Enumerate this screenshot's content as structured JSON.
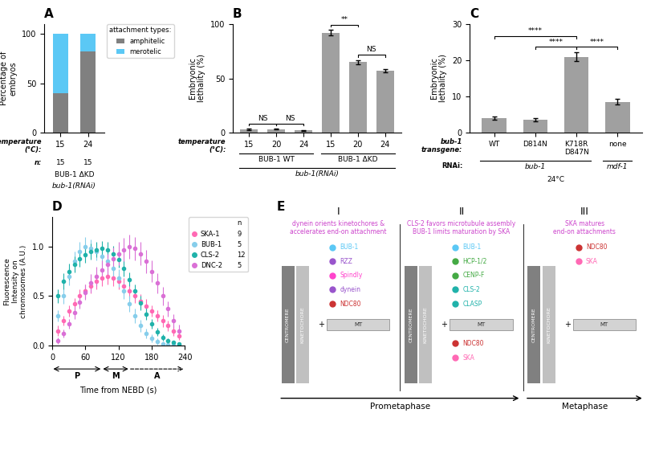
{
  "chart_data": [
    {
      "type": "bar",
      "stacked": true,
      "title": "A",
      "categories": [
        "15",
        "24"
      ],
      "series": [
        {
          "name": "amphitelic",
          "color": "#808080",
          "values": [
            40,
            82
          ]
        },
        {
          "name": "merotelic",
          "color": "#5bc8f5",
          "values": [
            60,
            18
          ]
        }
      ],
      "y_label": "Percentage of\nembryos",
      "ylim": [
        0,
        110
      ],
      "yticks": [
        0,
        50,
        100
      ],
      "legend": "upper left",
      "legend_title": "attachment types:",
      "annotations": {
        "row_labels": [
          "temperature\n(°C):",
          "n:"
        ],
        "n": [
          15,
          15
        ],
        "groups": [
          [
            {
              "text": "BUB-1 ΔKD",
              "from": 0,
              "to": 1
            }
          ],
          [
            {
              "text": "bub-1(RNAi)",
              "from": 0,
              "to": 1
            }
          ]
        ]
      }
    },
    {
      "type": "bar",
      "title": "B",
      "categories": [
        "15",
        "20",
        "24",
        "15",
        "20",
        "24"
      ],
      "values": [
        3,
        3,
        2,
        92,
        65,
        57
      ],
      "errors": [
        0.5,
        0.4,
        0.3,
        2.5,
        2.0,
        1.5
      ],
      "color": "#a0a0a0",
      "y_label": "Embryonic\nlethality (%)",
      "ylim": [
        0,
        100
      ],
      "yticks": [
        0,
        50,
        100
      ],
      "annotations": {
        "row_labels": [
          "temperature\n(°C):"
        ],
        "groups": [
          [
            {
              "text": "BUB-1 WT",
              "from": 0,
              "to": 2
            },
            {
              "text": "BUB-1 ΔKD",
              "from": 3,
              "to": 5
            }
          ],
          [
            {
              "text": "bub-1(RNAi)",
              "from": 0,
              "to": 5
            }
          ]
        ],
        "brackets": [
          {
            "text": "NS",
            "from": 0,
            "to": 1
          },
          {
            "text": "NS",
            "from": 1,
            "to": 2
          },
          {
            "text": "**",
            "from": 3,
            "to": 4
          },
          {
            "text": "NS",
            "from": 4,
            "to": 5
          }
        ]
      }
    },
    {
      "type": "bar",
      "title": "C",
      "categories": [
        "WT",
        "D814N",
        "K718R\nD847N",
        "none"
      ],
      "values": [
        4,
        3.5,
        21,
        8.5
      ],
      "errors": [
        0.5,
        0.4,
        1.2,
        0.8
      ],
      "color": "#a0a0a0",
      "y_label": "Embryonic\nlethality (%)",
      "ylim": [
        0,
        30
      ],
      "yticks": [
        0,
        10,
        20,
        30
      ],
      "annotations": {
        "row_labels": [
          "bub-1\ntransgene:",
          "RNAi:"
        ],
        "groups": [
          [
            {
              "text": "bub-1",
              "from": 0,
              "to": 2
            },
            {
              "text": "mdf-1",
              "from": 3,
              "to": 3
            }
          ]
        ],
        "footer": "24°C",
        "brackets": [
          {
            "text": "****",
            "from": 0,
            "to": 2
          },
          {
            "text": "****",
            "from": 1,
            "to": 2
          },
          {
            "text": "****",
            "from": 2,
            "to": 3
          }
        ]
      }
    },
    {
      "type": "scatter",
      "title": "D",
      "x_label": "Time from NEBD (s)",
      "y_label": "Fluorescence\nIntensity on\nchromosomes (A.U.)",
      "xlim": [
        0,
        240
      ],
      "xticks": [
        0,
        60,
        120,
        180,
        240
      ],
      "ylim": [
        0,
        1.3
      ],
      "yticks": [
        {
          "value": 0,
          "label": "0.0"
        },
        0.5,
        {
          "value": 1.0,
          "label": "1.0"
        }
      ],
      "legend": "upper left",
      "legend_title": "n",
      "series": [
        {
          "name": "SKA-1",
          "n": 9,
          "color": "#ff69b4",
          "x": [
            10,
            20,
            30,
            40,
            50,
            60,
            70,
            80,
            90,
            100,
            110,
            120,
            130,
            140,
            150,
            160,
            170,
            180,
            190,
            200,
            210,
            220,
            230
          ],
          "values": [
            0.15,
            0.25,
            0.35,
            0.42,
            0.5,
            0.55,
            0.6,
            0.65,
            0.68,
            0.7,
            0.68,
            0.65,
            0.6,
            0.55,
            0.5,
            0.45,
            0.4,
            0.35,
            0.3,
            0.25,
            0.2,
            0.15,
            0.1
          ],
          "errors": [
            0.05,
            0.05,
            0.06,
            0.06,
            0.07,
            0.07,
            0.07,
            0.08,
            0.08,
            0.08,
            0.08,
            0.08,
            0.08,
            0.07,
            0.07,
            0.07,
            0.07,
            0.06,
            0.06,
            0.06,
            0.05,
            0.05,
            0.04
          ]
        },
        {
          "name": "BUB-1",
          "n": 5,
          "color": "#87ceeb",
          "x": [
            10,
            20,
            30,
            40,
            50,
            60,
            70,
            80,
            90,
            100,
            110,
            120,
            130,
            140,
            150,
            160,
            170,
            180,
            190,
            200,
            210,
            220,
            230
          ],
          "values": [
            0.3,
            0.5,
            0.7,
            0.85,
            0.95,
            1.0,
            0.98,
            0.95,
            0.9,
            0.85,
            0.78,
            0.68,
            0.55,
            0.42,
            0.3,
            0.2,
            0.12,
            0.07,
            0.04,
            0.02,
            0.01,
            0.01,
            0.01
          ],
          "errors": [
            0.06,
            0.08,
            0.09,
            0.1,
            0.1,
            0.1,
            0.09,
            0.09,
            0.09,
            0.09,
            0.09,
            0.09,
            0.08,
            0.08,
            0.07,
            0.06,
            0.05,
            0.04,
            0.03,
            0.02,
            0.01,
            0.01,
            0.01
          ]
        },
        {
          "name": "CLS-2",
          "n": 12,
          "color": "#20b2aa",
          "x": [
            10,
            20,
            30,
            40,
            50,
            60,
            70,
            80,
            90,
            100,
            110,
            120,
            130,
            140,
            150,
            160,
            170,
            180,
            190,
            200,
            210,
            220,
            230
          ],
          "values": [
            0.5,
            0.65,
            0.75,
            0.82,
            0.88,
            0.92,
            0.95,
            0.97,
            0.98,
            0.97,
            0.93,
            0.87,
            0.78,
            0.67,
            0.55,
            0.43,
            0.32,
            0.22,
            0.14,
            0.08,
            0.05,
            0.03,
            0.02
          ],
          "errors": [
            0.07,
            0.08,
            0.08,
            0.08,
            0.08,
            0.08,
            0.08,
            0.08,
            0.08,
            0.08,
            0.08,
            0.08,
            0.08,
            0.07,
            0.07,
            0.07,
            0.06,
            0.05,
            0.04,
            0.03,
            0.02,
            0.02,
            0.01
          ]
        },
        {
          "name": "DNC-2",
          "n": 5,
          "color": "#da70d6",
          "x": [
            10,
            20,
            30,
            40,
            50,
            60,
            70,
            80,
            90,
            100,
            110,
            120,
            130,
            140,
            150,
            160,
            170,
            180,
            190,
            200,
            210,
            220,
            230
          ],
          "values": [
            0.05,
            0.12,
            0.22,
            0.33,
            0.44,
            0.54,
            0.63,
            0.7,
            0.76,
            0.82,
            0.88,
            0.93,
            0.97,
            1.0,
            0.98,
            0.93,
            0.85,
            0.75,
            0.63,
            0.5,
            0.37,
            0.25,
            0.15
          ],
          "errors": [
            0.03,
            0.04,
            0.05,
            0.06,
            0.07,
            0.08,
            0.09,
            0.1,
            0.1,
            0.11,
            0.11,
            0.12,
            0.12,
            0.12,
            0.12,
            0.12,
            0.12,
            0.11,
            0.1,
            0.09,
            0.08,
            0.07,
            0.06
          ]
        }
      ],
      "annotations": [
        {
          "text": "P",
          "from": 2,
          "to": 88
        },
        {
          "text": "M",
          "from": 92,
          "to": 138
        },
        {
          "text": "A",
          "from": 142,
          "to": 238,
          "line_style": "dashed"
        }
      ]
    },
    {
      "type": "diagram",
      "title": "E",
      "annotations": {
        "parts": [
          "CENTROMERE",
          "KINETOCHORE",
          "+",
          "MT"
        ],
        "sections": [
          {
            "label": "I",
            "text": "dynein orients kinetochores &\naccelerates end-on attachment",
            "color": "#cc44cc",
            "items": [
              {
                "text": "BUB-1",
                "color": "#5bc8f5"
              },
              {
                "text": "RZZ",
                "color": "#9955cc"
              },
              {
                "text": "Spindly",
                "color": "#ff44cc"
              },
              {
                "text": "dynein",
                "color": "#9955cc"
              },
              {
                "text": "NDC80",
                "color": "#cc3333"
              }
            ]
          },
          {
            "label": "II",
            "text": "CLS-2 favors microtubule assembly\nBUB-1 limits maturation by SKA",
            "color": "#cc44cc",
            "items": [
              {
                "text": "BUB-1",
                "color": "#5bc8f5"
              },
              {
                "text": "HCP-1/2",
                "color": "#44aa44"
              },
              {
                "text": "CENP-F",
                "color": "#44aa44"
              },
              {
                "text": "CLS-2",
                "color": "#20b2aa"
              },
              {
                "text": "CLASP",
                "color": "#20b2aa"
              },
              {
                "text": "NDC80",
                "color": "#cc3333"
              },
              {
                "text": "SKA",
                "color": "#ff69b4"
              }
            ]
          },
          {
            "label": "III",
            "text": "SKA matures\nend-on attachments",
            "color": "#cc44cc",
            "items": [
              {
                "text": "NDC80",
                "color": "#cc3333"
              },
              {
                "text": "SKA",
                "color": "#ff69b4"
              }
            ]
          }
        ],
        "phases": [
          {
            "text": "Prometaphase",
            "from": 0,
            "to": 2
          },
          {
            "text": "Metaphase",
            "from": 2,
            "to": 3
          }
        ]
      }
    }
  ]
}
